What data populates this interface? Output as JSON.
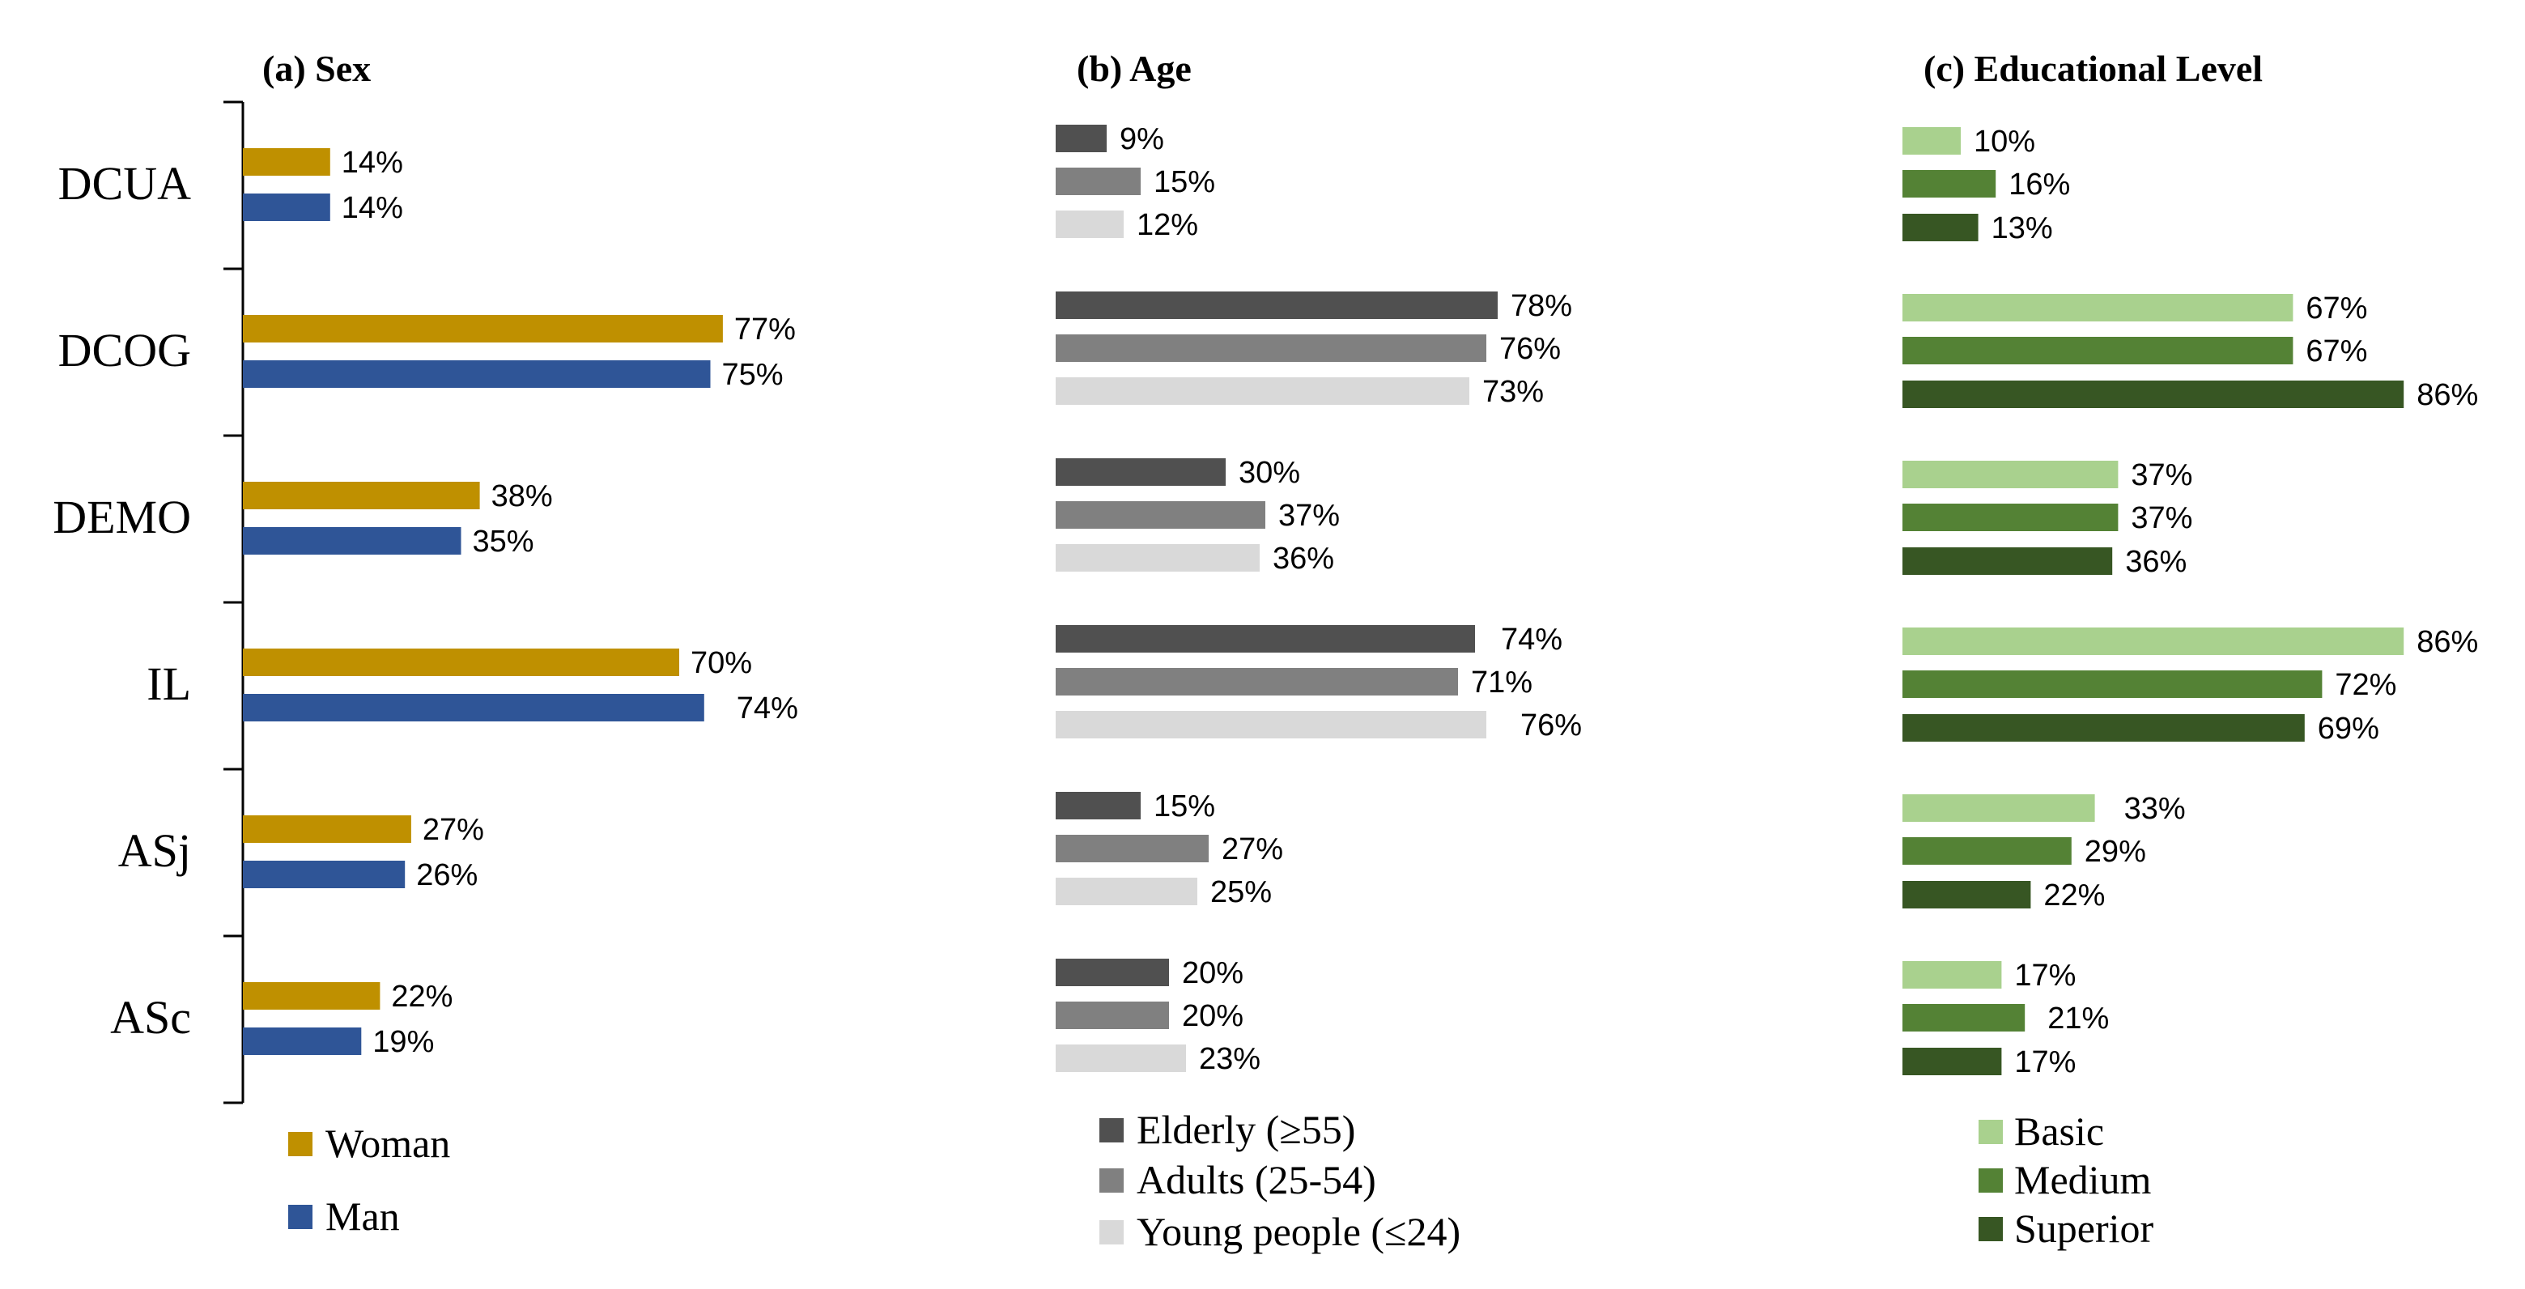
{
  "categories": [
    "DCUA",
    "DCOG",
    "DEMO",
    "IL",
    "ASj",
    "ASc"
  ],
  "label_suffix": "%",
  "chart_data": [
    {
      "type": "bar",
      "orientation": "horizontal",
      "title": "(a) Sex",
      "categories": [
        "DCUA",
        "DCOG",
        "DEMO",
        "IL",
        "ASj",
        "ASc"
      ],
      "series": [
        {
          "name": "Woman",
          "color": "#BF9000",
          "values": [
            14,
            77,
            38,
            70,
            27,
            22
          ]
        },
        {
          "name": "Man",
          "color": "#2F5597",
          "values": [
            14,
            75,
            35,
            74,
            26,
            19
          ]
        }
      ],
      "xlim": [
        0,
        100
      ],
      "grid": false,
      "legend_position": "bottom"
    },
    {
      "type": "bar",
      "orientation": "horizontal",
      "title": "(b) Age",
      "categories": [
        "DCUA",
        "DCOG",
        "DEMO",
        "IL",
        "ASj",
        "ASc"
      ],
      "series": [
        {
          "name": "Elderly (≥55)",
          "color": "#505050",
          "values": [
            9,
            78,
            30,
            74,
            15,
            20
          ]
        },
        {
          "name": "Adults (25-54)",
          "color": "#808080",
          "values": [
            15,
            76,
            37,
            71,
            27,
            20
          ]
        },
        {
          "name": "Young people (≤24)",
          "color": "#D9D9D9",
          "values": [
            12,
            73,
            36,
            76,
            25,
            23
          ]
        }
      ],
      "xlim": [
        0,
        100
      ],
      "grid": false,
      "legend_position": "bottom"
    },
    {
      "type": "bar",
      "orientation": "horizontal",
      "title": "(c) Educational Level",
      "categories": [
        "DCUA",
        "DCOG",
        "DEMO",
        "IL",
        "ASj",
        "ASc"
      ],
      "series": [
        {
          "name": "Basic",
          "color": "#A9D18E",
          "values": [
            10,
            67,
            37,
            86,
            33,
            17
          ]
        },
        {
          "name": "Medium",
          "color": "#548235",
          "values": [
            16,
            67,
            37,
            72,
            29,
            21
          ]
        },
        {
          "name": "Superior",
          "color": "#375623",
          "values": [
            13,
            86,
            36,
            69,
            22,
            17
          ]
        }
      ],
      "xlim": [
        0,
        100
      ],
      "grid": false,
      "legend_position": "bottom"
    }
  ]
}
